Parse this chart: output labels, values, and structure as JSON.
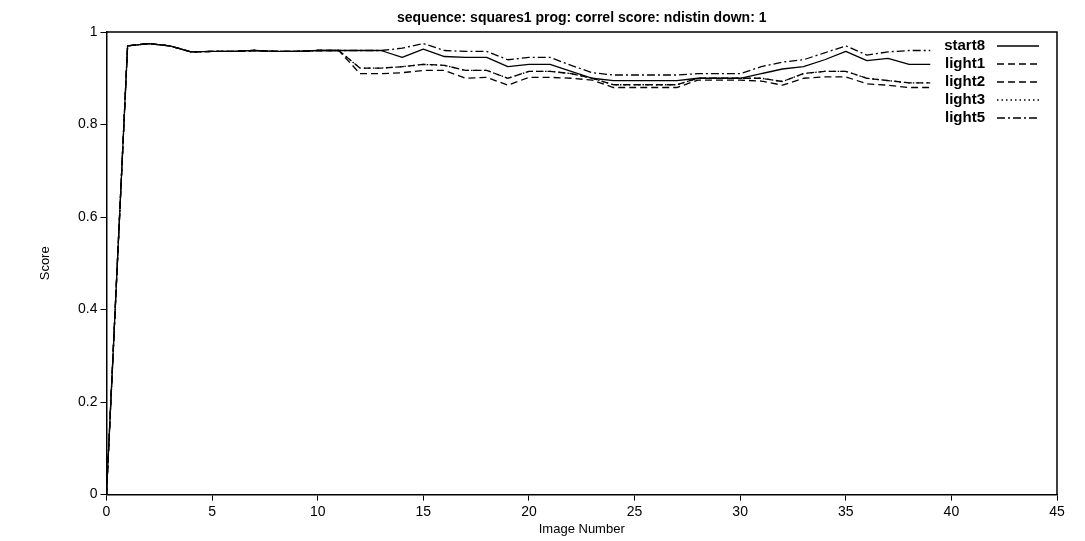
{
  "chart_data": {
    "type": "line",
    "title": "sequence: squares1 prog: correl score: ndistin down: 1",
    "xlabel": "Image Number",
    "ylabel": "Score",
    "x": [
      0,
      1,
      2,
      3,
      4,
      5,
      6,
      7,
      8,
      9,
      10,
      11,
      12,
      13,
      14,
      15,
      16,
      17,
      18,
      19,
      20,
      21,
      22,
      23,
      24,
      25,
      26,
      27,
      28,
      29,
      30,
      31,
      32,
      33,
      34,
      35,
      36,
      37,
      38,
      39
    ],
    "xlim": [
      0,
      45
    ],
    "xticks": [
      0,
      5,
      10,
      15,
      20,
      25,
      30,
      35,
      40,
      45
    ],
    "ylim": [
      0,
      1
    ],
    "yticks": [
      0,
      0.2,
      0.4,
      0.6,
      0.8,
      1
    ],
    "grid": false,
    "legend": "top right",
    "marker": "none",
    "series": [
      {
        "name": "start8",
        "color": "#000000",
        "line_style": "solid",
        "values": [
          0,
          0.97,
          0.975,
          0.97,
          0.957,
          0.958,
          0.958,
          0.96,
          0.958,
          0.958,
          0.96,
          0.96,
          0.96,
          0.96,
          0.945,
          0.963,
          0.947,
          0.945,
          0.945,
          0.925,
          0.93,
          0.93,
          0.915,
          0.9,
          0.895,
          0.895,
          0.895,
          0.895,
          0.9,
          0.9,
          0.9,
          0.91,
          0.92,
          0.925,
          0.94,
          0.958,
          0.938,
          0.943,
          0.93,
          0.93
        ]
      },
      {
        "name": "light1",
        "color": "#000000",
        "line_style": "dashed",
        "values": [
          0,
          0.97,
          0.975,
          0.97,
          0.957,
          0.958,
          0.958,
          0.96,
          0.958,
          0.958,
          0.96,
          0.96,
          0.91,
          0.91,
          0.912,
          0.917,
          0.917,
          0.9,
          0.902,
          0.885,
          0.902,
          0.902,
          0.9,
          0.896,
          0.88,
          0.88,
          0.88,
          0.88,
          0.896,
          0.896,
          0.896,
          0.894,
          0.885,
          0.9,
          0.903,
          0.903,
          0.888,
          0.885,
          0.88,
          0.88
        ]
      },
      {
        "name": "light2",
        "color": "#000000",
        "line_style": "dashed",
        "values": [
          0,
          0.97,
          0.975,
          0.97,
          0.957,
          0.958,
          0.958,
          0.96,
          0.958,
          0.958,
          0.96,
          0.96,
          0.922,
          0.922,
          0.925,
          0.93,
          0.928,
          0.917,
          0.917,
          0.9,
          0.915,
          0.915,
          0.91,
          0.9,
          0.886,
          0.886,
          0.886,
          0.886,
          0.9,
          0.9,
          0.9,
          0.9,
          0.893,
          0.91,
          0.915,
          0.915,
          0.9,
          0.895,
          0.89,
          0.89
        ]
      },
      {
        "name": "light3",
        "color": "#000000",
        "line_style": "dotted",
        "values": [
          0,
          0.97,
          0.975,
          0.97,
          0.957,
          0.958,
          0.958,
          0.96,
          0.958,
          0.958,
          0.96,
          0.96,
          0.922,
          0.922,
          0.925,
          0.93,
          0.928,
          0.917,
          0.917,
          0.9,
          0.915,
          0.915,
          0.91,
          0.9,
          0.886,
          0.886,
          0.886,
          0.886,
          0.9,
          0.9,
          0.9,
          0.9,
          0.893,
          0.91,
          0.915,
          0.915,
          0.9,
          0.895,
          0.89,
          0.89
        ]
      },
      {
        "name": "light5",
        "color": "#000000",
        "line_style": "dashdot",
        "values": [
          0,
          0.97,
          0.975,
          0.97,
          0.957,
          0.958,
          0.958,
          0.96,
          0.958,
          0.958,
          0.96,
          0.96,
          0.96,
          0.96,
          0.965,
          0.975,
          0.96,
          0.958,
          0.958,
          0.94,
          0.945,
          0.945,
          0.928,
          0.912,
          0.907,
          0.907,
          0.907,
          0.907,
          0.91,
          0.91,
          0.91,
          0.925,
          0.935,
          0.94,
          0.955,
          0.97,
          0.95,
          0.957,
          0.96,
          0.96
        ]
      }
    ]
  }
}
